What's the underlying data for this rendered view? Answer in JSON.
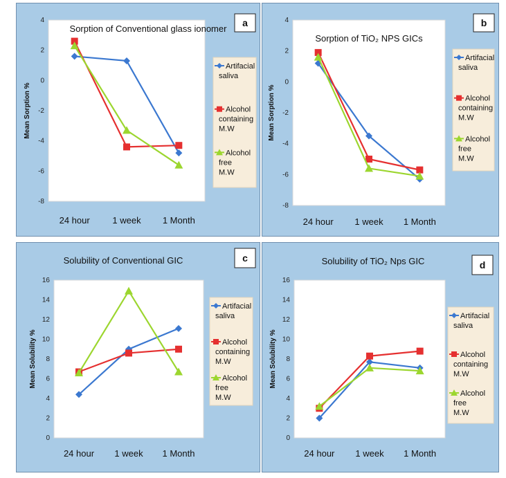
{
  "chart_data": [
    {
      "type": "line",
      "panel_letter": "a",
      "title": "Sorption of Conventional glass ionomer",
      "ylabel": "Mean Sorption %",
      "categories": [
        "24 hour",
        "1 week",
        "1 Month"
      ],
      "ylim": [
        -8,
        4
      ],
      "yticks": [
        -8,
        -6,
        -4,
        -2,
        0,
        2,
        4
      ],
      "series": [
        {
          "name": "Artifacial saliva",
          "color": "#3b78d0",
          "marker": "diamond",
          "values": [
            1.6,
            1.3,
            -4.8
          ]
        },
        {
          "name": "Alcohol containing M.W",
          "color": "#e53030",
          "marker": "square",
          "values": [
            2.6,
            -4.4,
            -4.3
          ]
        },
        {
          "name": "Alcohol free M.W",
          "color": "#9cd62f",
          "marker": "triangle",
          "values": [
            2.3,
            -3.3,
            -5.6
          ]
        }
      ]
    },
    {
      "type": "line",
      "panel_letter": "b",
      "title": "Sorption of TiO₂ NPS GICs",
      "ylabel": "Mean Sorption %",
      "categories": [
        "24 hour",
        "1 week",
        "1 Month"
      ],
      "ylim": [
        -8,
        4
      ],
      "yticks": [
        -8,
        -6,
        -4,
        -2,
        0,
        2,
        4
      ],
      "series": [
        {
          "name": "Artifacial saliva",
          "color": "#3b78d0",
          "marker": "diamond",
          "values": [
            1.2,
            -3.5,
            -6.3
          ]
        },
        {
          "name": "Alcohol containing M.W",
          "color": "#e53030",
          "marker": "square",
          "values": [
            1.9,
            -5.0,
            -5.7
          ]
        },
        {
          "name": "Alcohol free M.W",
          "color": "#9cd62f",
          "marker": "triangle",
          "values": [
            1.6,
            -5.6,
            -6.1
          ]
        }
      ]
    },
    {
      "type": "line",
      "panel_letter": "c",
      "title": "Solubility of Conventional GIC",
      "ylabel": "Mean  Solubility %",
      "categories": [
        "24 hour",
        "1 week",
        "1 Month"
      ],
      "ylim": [
        0,
        16
      ],
      "yticks": [
        0,
        2,
        4,
        6,
        8,
        10,
        12,
        14,
        16
      ],
      "series": [
        {
          "name": "Artifacial saliva",
          "color": "#3b78d0",
          "marker": "diamond",
          "values": [
            4.4,
            9.0,
            11.1
          ]
        },
        {
          "name": "Alcohol containing M.W",
          "color": "#e53030",
          "marker": "square",
          "values": [
            6.7,
            8.6,
            9.0
          ]
        },
        {
          "name": "Alcohol free M.W",
          "color": "#9cd62f",
          "marker": "triangle",
          "values": [
            6.6,
            14.9,
            6.7
          ]
        }
      ]
    },
    {
      "type": "line",
      "panel_letter": "d",
      "title": "Solubility of TiO₂ Nps GIC",
      "ylabel": "Mean  Solubility %",
      "categories": [
        "24 hour",
        "1 week",
        "1 Month"
      ],
      "ylim": [
        0,
        16
      ],
      "yticks": [
        0,
        2,
        4,
        6,
        8,
        10,
        12,
        14,
        16
      ],
      "series": [
        {
          "name": "Artifacial saliva",
          "color": "#3b78d0",
          "marker": "diamond",
          "values": [
            2.0,
            7.7,
            7.1
          ]
        },
        {
          "name": "Alcohol containing M.W",
          "color": "#e53030",
          "marker": "square",
          "values": [
            3.0,
            8.3,
            8.8
          ]
        },
        {
          "name": "Alcohol free M.W",
          "color": "#9cd62f",
          "marker": "triangle",
          "values": [
            3.2,
            7.1,
            6.8
          ]
        }
      ]
    }
  ]
}
